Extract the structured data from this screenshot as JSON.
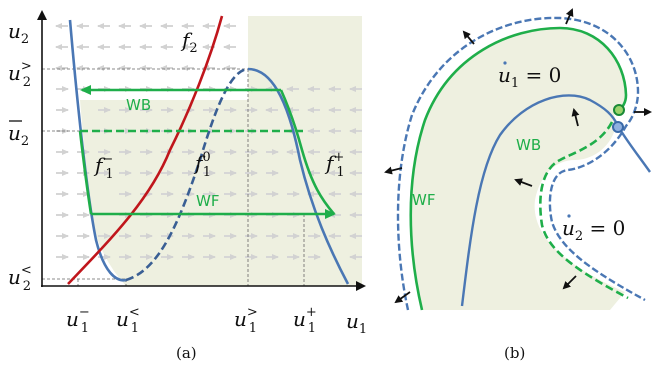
{
  "panel_a": {
    "caption": "(a)",
    "axis_y": "u",
    "axis_y_sub": "2",
    "axis_x": "u",
    "axis_x_sub": "1",
    "y_ticks": [
      {
        "base": "u",
        "sub": "2",
        "sup": ">"
      },
      {
        "base": "u",
        "sub": "2",
        "sup": "",
        "bar": true
      },
      {
        "base": "u",
        "sub": "2",
        "sup": "<"
      }
    ],
    "x_ticks": [
      {
        "base": "u",
        "sub": "1",
        "sup": "−"
      },
      {
        "base": "u",
        "sub": "1",
        "sup": "<"
      },
      {
        "base": "u",
        "sub": "1",
        "sup": ">"
      },
      {
        "base": "u",
        "sub": "1",
        "sup": "+"
      }
    ],
    "curve_f2": {
      "base": "f",
      "sub": "2",
      "color": "#c0161c"
    },
    "branch_left": {
      "base": "f",
      "sub": "1",
      "sup": "−"
    },
    "branch_middle": {
      "base": "f",
      "sub": "1",
      "sup": "0"
    },
    "branch_right": {
      "base": "f",
      "sub": "1",
      "sup": "+"
    },
    "label_wb": "WB",
    "label_wf": "WF",
    "colors": {
      "front": "#1fae4a",
      "nullcline": "#4a77b4",
      "shade": "#eef0e0",
      "arrows": "#d6d6d6"
    }
  },
  "panel_b": {
    "caption": "(b)",
    "label_u1_null": {
      "base": "u",
      "sub": "1",
      "rhs": " = 0"
    },
    "label_u2_null": {
      "base": "u",
      "sub": "2",
      "rhs": " = 0"
    },
    "label_wb": "WB",
    "label_wf": "WF"
  }
}
